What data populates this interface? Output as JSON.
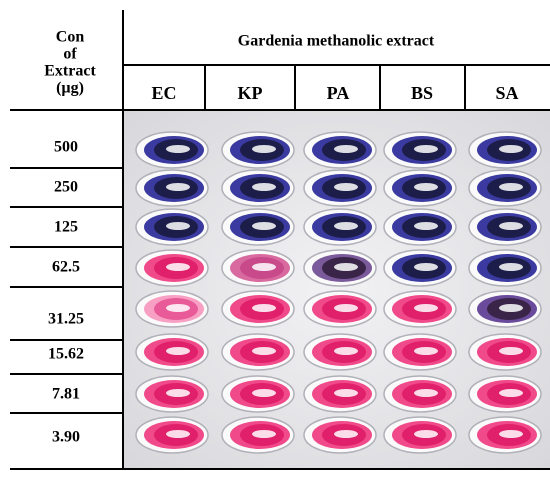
{
  "header": {
    "column_title": [
      "Con",
      "of",
      "Extract",
      "(µg)"
    ],
    "group_title": "Gardenia methanolic extract",
    "organisms": [
      "EC",
      "KP",
      "PA",
      "BS",
      "SA"
    ]
  },
  "rows": [
    "500",
    "250",
    "125",
    "62.5",
    "31.25",
    "15.62",
    "7.81",
    "3.90"
  ]
}
